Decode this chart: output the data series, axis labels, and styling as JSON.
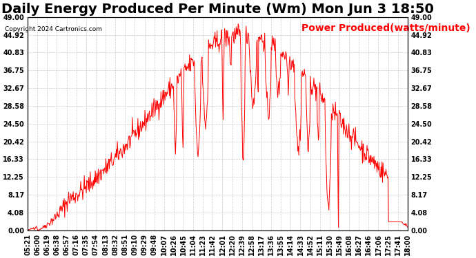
{
  "title": "Daily Energy Produced Per Minute (Wm) Mon Jun 3 18:50",
  "copyright": "Copyright 2024 Cartronics.com",
  "legend_label": "Power Produced(watts/minute)",
  "legend_color": "red",
  "line_color": "red",
  "background_color": "white",
  "grid_color": "#cccccc",
  "ymin": 0.0,
  "ymax": 49.0,
  "yticks": [
    0.0,
    4.08,
    8.17,
    12.25,
    16.33,
    20.42,
    24.5,
    28.58,
    32.67,
    36.75,
    40.83,
    44.92,
    49.0
  ],
  "ytick_labels": [
    "0.00",
    "4.08",
    "8.17",
    "12.25",
    "16.33",
    "20.42",
    "24.50",
    "28.58",
    "32.67",
    "36.75",
    "40.83",
    "44.92",
    "49.00"
  ],
  "xtick_labels": [
    "05:21",
    "06:00",
    "06:19",
    "06:38",
    "06:57",
    "07:16",
    "07:35",
    "07:54",
    "08:13",
    "08:32",
    "08:51",
    "09:10",
    "09:29",
    "09:48",
    "10:07",
    "10:26",
    "10:45",
    "11:04",
    "11:23",
    "11:42",
    "12:01",
    "12:20",
    "12:39",
    "12:58",
    "13:17",
    "13:36",
    "13:55",
    "14:14",
    "14:33",
    "14:52",
    "15:11",
    "15:30",
    "15:49",
    "16:08",
    "16:27",
    "16:46",
    "17:06",
    "17:25",
    "17:41",
    "18:00"
  ],
  "title_fontsize": 14,
  "tick_fontsize": 7,
  "legend_fontsize": 10
}
